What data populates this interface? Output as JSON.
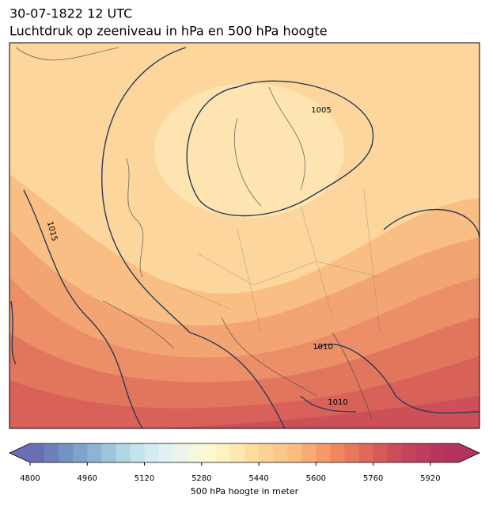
{
  "title": "30-07-1822 12 UTC",
  "subtitle": "Luchtdruk op zeeniveau in hPa en 500 hPa hoogte",
  "contour_labels": [
    "1015",
    "1005",
    "1010",
    "1010"
  ],
  "colorbar": {
    "label": "500 hPa hoogte in meter",
    "lim": [
      4800,
      6000
    ],
    "ticks": [
      4800,
      4960,
      5120,
      5280,
      5440,
      5600,
      5760,
      5920
    ],
    "colors": [
      "#6a6fb3",
      "#6e80bb",
      "#7591c3",
      "#80a3cb",
      "#8db4d3",
      "#9fc5dd",
      "#b2d5e6",
      "#c5e3ed",
      "#d5ebf2",
      "#e2f1f3",
      "#ecf5ec",
      "#f4f8de",
      "#fbf9cf",
      "#fdf3c0",
      "#fde9b0",
      "#fddc9f",
      "#fcd294",
      "#fcc88a",
      "#fbbd7f",
      "#f8ab72",
      "#f49968",
      "#ef8861",
      "#e8785c",
      "#e06858",
      "#d65a57",
      "#cd4d58",
      "#c5435b",
      "#bf3d5c",
      "#b8365e",
      "#b3335f"
    ]
  }
}
